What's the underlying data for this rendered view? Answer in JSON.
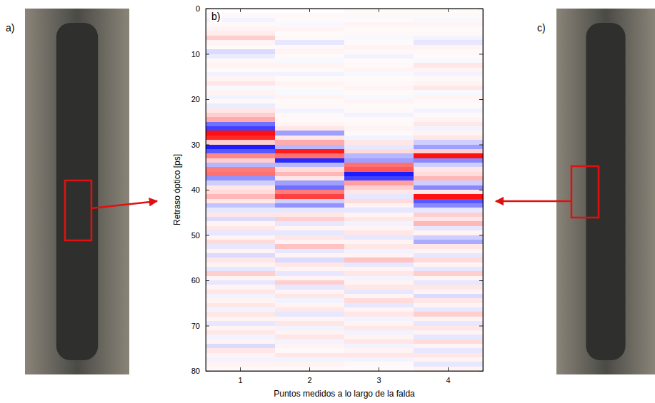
{
  "chart_data": {
    "type": "heatmap",
    "x_label": "Puntos medidos a lo largo de la falda",
    "y_label": "Retraso óptico [ps]",
    "annotations": [
      {
        "text": "a)"
      },
      {
        "text": "b)"
      },
      {
        "text": "c)"
      }
    ],
    "categories": [
      "1",
      "2",
      "3",
      "4"
    ],
    "y_bins": [
      0,
      1,
      2,
      3,
      4,
      5,
      6,
      7,
      8,
      9,
      10,
      11,
      12,
      13,
      14,
      15,
      16,
      17,
      18,
      19,
      20,
      21,
      22,
      23,
      24,
      25,
      26,
      27,
      28,
      29,
      30,
      31,
      32,
      33,
      34,
      35,
      36,
      37,
      38,
      39,
      40,
      41,
      42,
      43,
      44,
      45,
      46,
      47,
      48,
      49,
      50,
      51,
      52,
      53,
      54,
      55,
      56,
      57,
      58,
      59,
      60,
      61,
      62,
      63,
      64,
      65,
      66,
      67,
      68,
      69,
      70,
      71,
      72,
      73,
      74,
      75,
      76,
      77,
      78,
      79,
      80
    ],
    "ylim": [
      0,
      80
    ],
    "yticks": [
      0,
      10,
      20,
      30,
      40,
      50,
      60,
      70,
      80
    ],
    "color_range": [
      -1,
      1
    ],
    "cells": [
      [
        0,
        0.03,
        -0.05,
        0.03,
        0.05,
        0.08,
        0.2,
        0.05,
        0.02,
        -0.15,
        -0.08,
        0.03,
        0.05,
        0.02,
        -0.05,
        0.05,
        0.1,
        -0.03,
        0.05,
        -0.05,
        0.03,
        -0.08,
        0.1,
        0.2,
        0.35,
        -0.6,
        -0.8,
        1.0,
        0.9,
        0.2,
        -0.95,
        -0.7,
        0.5,
        0.2,
        -0.3,
        0.55,
        0.6,
        -0.45,
        -0.2,
        0.1,
        0.15,
        0.3,
        0.1,
        -0.25,
        -0.1,
        0.1,
        -0.15,
        0.05,
        0.1,
        -0.1,
        0.05,
        0.15,
        -0.1,
        0.05,
        -0.15,
        0.1,
        0.05,
        -0.1,
        0.2,
        0.05,
        -0.1,
        0.05,
        0.1,
        -0.05,
        0.05,
        0.1,
        -0.05,
        0.1,
        0.05,
        -0.1,
        0.05,
        0.1,
        -0.05,
        0.05,
        -0.15,
        0.1,
        0.05,
        -0.05,
        0.05,
        0.03
      ],
      [
        0,
        0.03,
        0.02,
        -0.03,
        0.05,
        0.02,
        0.03,
        -0.1,
        0.03,
        0.05,
        0.02,
        -0.03,
        0.05,
        0.03,
        -0.05,
        0.02,
        0.05,
        0.03,
        -0.03,
        0.05,
        0.02,
        0.03,
        -0.05,
        0.03,
        0.02,
        0.05,
        0.1,
        -0.4,
        0.1,
        0.35,
        -0.3,
        0.95,
        0.6,
        -0.9,
        -0.3,
        0.15,
        0.3,
        0.1,
        -0.4,
        -0.6,
        0.55,
        0.8,
        -0.2,
        -0.45,
        -0.1,
        0.1,
        0.2,
        -0.1,
        0.05,
        -0.1,
        0.1,
        0.05,
        0.25,
        -0.1,
        0.05,
        -0.15,
        0.1,
        0.05,
        -0.1,
        0.05,
        0.2,
        -0.1,
        0.05,
        0.1,
        -0.05,
        0.05,
        0.1,
        -0.1,
        0.05,
        0.1,
        -0.05,
        0.05,
        0.1,
        -0.05,
        0.05,
        0.03,
        0.1,
        -0.05,
        0.05,
        0.03
      ],
      [
        0.02,
        0.03,
        -0.02,
        0.05,
        0.02,
        0.03,
        -0.03,
        0.02,
        0.05,
        0.03,
        -0.05,
        0.02,
        0.03,
        0.05,
        -0.03,
        0.02,
        0.03,
        0.05,
        0.02,
        -0.03,
        0.05,
        0.02,
        0.03,
        -0.05,
        0.02,
        0.03,
        0.05,
        0.02,
        -0.05,
        0.1,
        -0.1,
        0.15,
        -0.3,
        -0.4,
        0.6,
        0.7,
        -0.95,
        -0.8,
        0.4,
        0.2,
        0.1,
        -0.1,
        0.15,
        0.05,
        -0.1,
        0.05,
        0.1,
        -0.05,
        0.05,
        0.1,
        -0.1,
        0.05,
        0.1,
        -0.05,
        0.05,
        0.25,
        -0.1,
        0.05,
        0.1,
        -0.05,
        0.05,
        0.1,
        -0.1,
        0.05,
        0.15,
        -0.1,
        0.05,
        0.1,
        -0.05,
        0.05,
        0.1,
        -0.05,
        0.05,
        0.1,
        -0.05,
        0.05,
        0.1,
        -0.05,
        0.03,
        0.02
      ],
      [
        0.02,
        0.03,
        -0.03,
        0.05,
        0.02,
        0.03,
        -0.05,
        -0.1,
        0.05,
        0.03,
        0.02,
        -0.03,
        0.1,
        0.05,
        -0.05,
        0.03,
        0.05,
        0.1,
        -0.03,
        0.05,
        0.03,
        0.02,
        -0.05,
        0.03,
        0.05,
        0.1,
        -0.05,
        0.05,
        0.1,
        -0.2,
        -0.4,
        0.2,
        1.0,
        -0.5,
        -0.2,
        0.1,
        0.15,
        0.3,
        -0.2,
        -0.5,
        0.1,
        1.0,
        -0.7,
        -0.5,
        -0.1,
        0.2,
        0.1,
        0.3,
        -0.1,
        0.05,
        -0.2,
        -0.35,
        0.1,
        0.05,
        -0.1,
        0.15,
        0.05,
        -0.1,
        0.2,
        0.05,
        -0.1,
        0.1,
        0.05,
        -0.15,
        0.1,
        0.05,
        -0.1,
        0.2,
        0.05,
        -0.1,
        0.1,
        0.05,
        -0.1,
        0.15,
        0.05,
        -0.1,
        0.1,
        0.05,
        -0.1,
        0.05
      ]
    ]
  }
}
